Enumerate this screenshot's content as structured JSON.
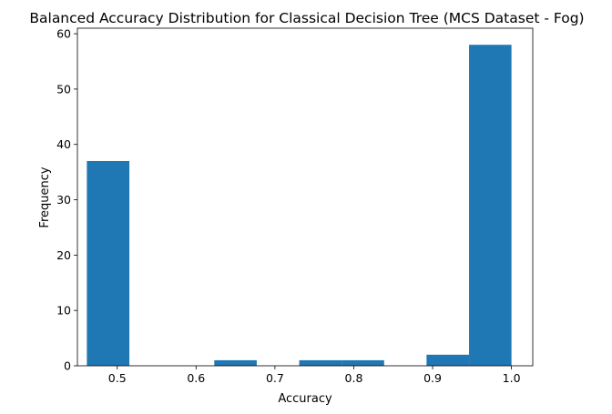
{
  "chart_data": {
    "type": "bar",
    "title": "Balanced Accuracy Distribution for Classical Decision Tree (MCS Dataset - Fog)",
    "xlabel": "Accuracy",
    "ylabel": "Frequency",
    "xlim": [
      0.4495,
      1.027
    ],
    "ylim": [
      0,
      61
    ],
    "grid": false,
    "x_ticks": [
      0.5,
      0.6,
      0.7,
      0.8,
      0.9,
      1.0
    ],
    "x_tick_labels": [
      "0.5",
      "0.6",
      "0.7",
      "0.8",
      "0.9",
      "1.0"
    ],
    "y_ticks": [
      0,
      10,
      20,
      30,
      40,
      50,
      60
    ],
    "y_tick_labels": [
      "0",
      "10",
      "20",
      "30",
      "40",
      "50",
      "60"
    ],
    "bar_color": "#1f77b4",
    "bins": [
      {
        "start": 0.4615,
        "end": 0.5154,
        "count": 37
      },
      {
        "start": 0.5154,
        "end": 0.5692,
        "count": 0
      },
      {
        "start": 0.5692,
        "end": 0.6231,
        "count": 0
      },
      {
        "start": 0.6231,
        "end": 0.6769,
        "count": 1
      },
      {
        "start": 0.6769,
        "end": 0.7308,
        "count": 0
      },
      {
        "start": 0.7308,
        "end": 0.7846,
        "count": 1
      },
      {
        "start": 0.7846,
        "end": 0.8385,
        "count": 1
      },
      {
        "start": 0.8385,
        "end": 0.8923,
        "count": 0
      },
      {
        "start": 0.8923,
        "end": 0.9462,
        "count": 2
      },
      {
        "start": 0.9462,
        "end": 1.0,
        "count": 58
      }
    ]
  }
}
